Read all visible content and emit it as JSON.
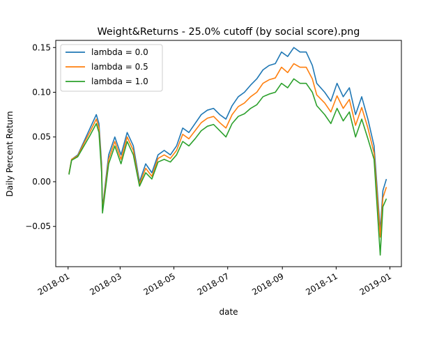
{
  "chart_data": {
    "type": "line",
    "title": "Weight&Returns - 25.0% cutoff (by social score).png",
    "xlabel": "date",
    "ylabel": "Daily Percent Return",
    "xlim": [
      "2017-12-18",
      "2019-01-14"
    ],
    "ylim": [
      -0.095,
      0.158
    ],
    "grid": false,
    "legend_position": "top-left",
    "x_ticks": [
      "2018-01-01",
      "2018-03-01",
      "2018-05-01",
      "2018-07-01",
      "2018-09-01",
      "2018-11-01",
      "2019-01-01"
    ],
    "x_tick_labels": [
      "2018-01",
      "2018-03",
      "2018-05",
      "2018-07",
      "2018-09",
      "2018-11",
      "2019-01"
    ],
    "y_ticks": [
      -0.05,
      0.0,
      0.05,
      0.1,
      0.15
    ],
    "y_tick_labels": [
      "−0.05",
      "0.00",
      "0.05",
      "0.10",
      "0.15"
    ],
    "x": [
      "2018-01-02",
      "2018-01-05",
      "2018-01-12",
      "2018-01-19",
      "2018-01-26",
      "2018-02-02",
      "2018-02-05",
      "2018-02-08",
      "2018-02-09",
      "2018-02-16",
      "2018-02-23",
      "2018-03-02",
      "2018-03-09",
      "2018-03-16",
      "2018-03-23",
      "2018-03-30",
      "2018-04-06",
      "2018-04-13",
      "2018-04-20",
      "2018-04-27",
      "2018-05-04",
      "2018-05-11",
      "2018-05-18",
      "2018-05-25",
      "2018-06-01",
      "2018-06-08",
      "2018-06-15",
      "2018-06-22",
      "2018-06-29",
      "2018-07-06",
      "2018-07-13",
      "2018-07-20",
      "2018-07-27",
      "2018-08-03",
      "2018-08-10",
      "2018-08-17",
      "2018-08-24",
      "2018-08-31",
      "2018-09-07",
      "2018-09-14",
      "2018-09-21",
      "2018-09-28",
      "2018-10-05",
      "2018-10-10",
      "2018-10-19",
      "2018-10-26",
      "2018-11-02",
      "2018-11-09",
      "2018-11-16",
      "2018-11-23",
      "2018-11-30",
      "2018-12-07",
      "2018-12-14",
      "2018-12-21",
      "2018-12-24",
      "2018-12-28"
    ],
    "series": [
      {
        "name": "lambda = 0.0",
        "color": "#1f77b4",
        "values": [
          0.009,
          0.025,
          0.03,
          0.045,
          0.06,
          0.075,
          0.065,
          0.02,
          -0.03,
          0.03,
          0.05,
          0.03,
          0.055,
          0.04,
          0.0,
          0.02,
          0.01,
          0.03,
          0.035,
          0.03,
          0.04,
          0.06,
          0.055,
          0.065,
          0.075,
          0.08,
          0.082,
          0.075,
          0.07,
          0.085,
          0.095,
          0.1,
          0.108,
          0.115,
          0.125,
          0.13,
          0.132,
          0.145,
          0.14,
          0.15,
          0.145,
          0.145,
          0.13,
          0.11,
          0.1,
          0.09,
          0.11,
          0.095,
          0.105,
          0.075,
          0.095,
          0.07,
          0.04,
          -0.055,
          -0.01,
          0.003
        ]
      },
      {
        "name": "lambda = 0.5",
        "color": "#ff7f0e",
        "values": [
          0.009,
          0.025,
          0.029,
          0.043,
          0.056,
          0.07,
          0.06,
          0.015,
          -0.032,
          0.025,
          0.045,
          0.025,
          0.05,
          0.035,
          -0.003,
          0.015,
          0.006,
          0.026,
          0.03,
          0.026,
          0.035,
          0.053,
          0.048,
          0.057,
          0.066,
          0.071,
          0.073,
          0.066,
          0.06,
          0.075,
          0.084,
          0.088,
          0.095,
          0.1,
          0.11,
          0.114,
          0.116,
          0.128,
          0.122,
          0.132,
          0.128,
          0.128,
          0.115,
          0.097,
          0.088,
          0.078,
          0.096,
          0.082,
          0.092,
          0.063,
          0.083,
          0.06,
          0.032,
          -0.062,
          -0.018,
          -0.006
        ]
      },
      {
        "name": "lambda = 1.0",
        "color": "#2ca02c",
        "values": [
          0.008,
          0.024,
          0.028,
          0.04,
          0.052,
          0.065,
          0.055,
          0.01,
          -0.035,
          0.02,
          0.04,
          0.02,
          0.045,
          0.03,
          -0.005,
          0.01,
          0.003,
          0.022,
          0.025,
          0.022,
          0.03,
          0.045,
          0.04,
          0.048,
          0.057,
          0.062,
          0.064,
          0.057,
          0.05,
          0.065,
          0.073,
          0.076,
          0.082,
          0.086,
          0.095,
          0.098,
          0.1,
          0.11,
          0.105,
          0.115,
          0.11,
          0.11,
          0.1,
          0.085,
          0.075,
          0.065,
          0.082,
          0.068,
          0.078,
          0.05,
          0.07,
          0.048,
          0.025,
          -0.082,
          -0.028,
          -0.019
        ]
      }
    ]
  }
}
